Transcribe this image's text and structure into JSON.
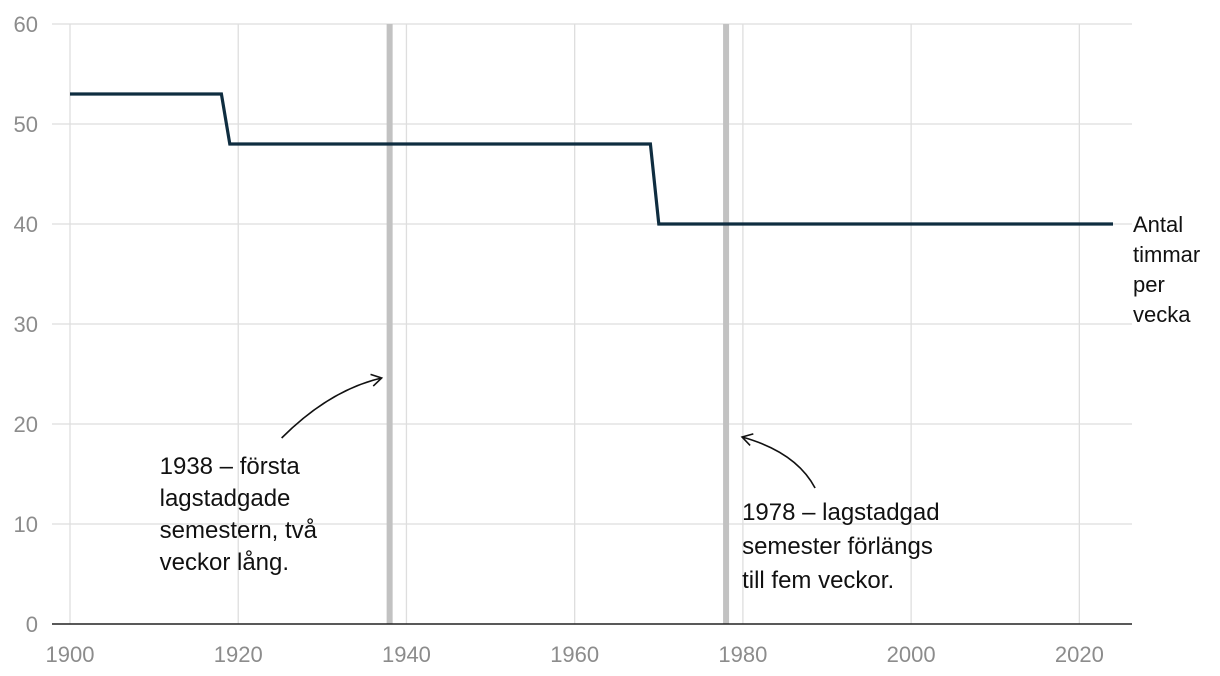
{
  "chart_data": {
    "type": "line",
    "step": true,
    "xlim": [
      1900,
      2024
    ],
    "ylim": [
      0,
      60
    ],
    "x_ticks": [
      1900,
      1920,
      1940,
      1960,
      1980,
      2000,
      2020
    ],
    "y_ticks": [
      0,
      10,
      20,
      30,
      40,
      50,
      60
    ],
    "grid": true,
    "series": [
      {
        "name": [
          "Antal",
          "timmar",
          "per",
          "vecka"
        ],
        "color": "#0f2d40",
        "points": [
          [
            1900,
            53
          ],
          [
            1918,
            53
          ],
          [
            1919,
            48
          ],
          [
            1969,
            48
          ],
          [
            1970,
            40
          ],
          [
            2024,
            40
          ]
        ]
      }
    ],
    "events": [
      {
        "x": 1938,
        "text": [
          "1938 – första",
          "lagstadgade",
          "semestern, två",
          "veckor lång."
        ]
      },
      {
        "x": 1978,
        "text": [
          "1978 – lagstadgad",
          "semester förlängs",
          "till fem veckor."
        ]
      }
    ],
    "colors": {
      "event_line": "#c2c2c2",
      "grid": "#dedede",
      "tick_text": "#8c8c8c"
    }
  }
}
